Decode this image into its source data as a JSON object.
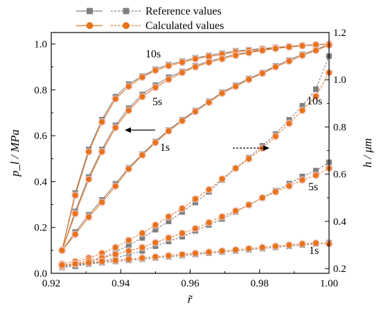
{
  "chart_data": {
    "type": "line",
    "xlabel": "r̃",
    "ylabel_left": "p_l / MPa",
    "ylabel_right": "h / μm",
    "xlim": [
      0.92,
      1.0
    ],
    "ylim_left": [
      0.0,
      1.05
    ],
    "ylim_right": [
      0.18,
      1.2
    ],
    "x_ticks": [
      "0.92",
      "0.94",
      "0.96",
      "0.98",
      "1.00"
    ],
    "y_left_ticks": [
      "0.0",
      "0.2",
      "0.4",
      "0.6",
      "0.8",
      "1.0"
    ],
    "y_right_ticks": [
      "0.2",
      "0.4",
      "0.6",
      "0.8",
      "1.0",
      "1.2"
    ],
    "legend": {
      "reference": "Reference values",
      "calculated": "Calculated values"
    },
    "colors": {
      "reference": "#7f7f7f",
      "calculated": "#e8731c",
      "halo": "#f4c7c0"
    },
    "annotations": {
      "p_10s": "10s",
      "p_5s": "5s",
      "p_1s": "1s",
      "h_10s": "10s",
      "h_5s": "5s",
      "h_1s": "1s"
    },
    "x": [
      0.9231,
      0.9269,
      0.9308,
      0.9346,
      0.9385,
      0.9423,
      0.9462,
      0.95,
      0.9538,
      0.9577,
      0.9615,
      0.9654,
      0.9692,
      0.9731,
      0.9769,
      0.9808,
      0.9846,
      0.9885,
      0.9923,
      0.9962,
      1.0
    ],
    "series": [
      {
        "name": "10s",
        "axis": "left",
        "set": "reference",
        "values": [
          0.1,
          0.35,
          0.54,
          0.67,
          0.77,
          0.825,
          0.86,
          0.89,
          0.91,
          0.925,
          0.94,
          0.95,
          0.96,
          0.97,
          0.975,
          0.98,
          0.985,
          0.99,
          0.994,
          0.997,
          1.0
        ]
      },
      {
        "name": "10s",
        "axis": "left",
        "set": "calculated",
        "values": [
          0.1,
          0.34,
          0.53,
          0.66,
          0.76,
          0.815,
          0.855,
          0.885,
          0.905,
          0.92,
          0.935,
          0.945,
          0.955,
          0.965,
          0.972,
          0.978,
          0.984,
          0.989,
          0.993,
          0.997,
          1.0
        ]
      },
      {
        "name": "5s",
        "axis": "left",
        "set": "reference",
        "values": [
          0.1,
          0.27,
          0.42,
          0.54,
          0.645,
          0.72,
          0.78,
          0.82,
          0.855,
          0.88,
          0.905,
          0.925,
          0.94,
          0.955,
          0.965,
          0.975,
          0.982,
          0.988,
          0.993,
          0.997,
          1.0
        ]
      },
      {
        "name": "5s",
        "axis": "left",
        "set": "calculated",
        "values": [
          0.1,
          0.26,
          0.41,
          0.53,
          0.635,
          0.71,
          0.77,
          0.81,
          0.845,
          0.875,
          0.9,
          0.92,
          0.935,
          0.95,
          0.962,
          0.972,
          0.98,
          0.987,
          0.992,
          0.996,
          1.0
        ]
      },
      {
        "name": "1s",
        "axis": "left",
        "set": "reference",
        "values": [
          0.1,
          0.18,
          0.255,
          0.32,
          0.39,
          0.46,
          0.52,
          0.575,
          0.625,
          0.67,
          0.71,
          0.75,
          0.79,
          0.82,
          0.85,
          0.875,
          0.905,
          0.93,
          0.955,
          0.975,
          1.0
        ]
      },
      {
        "name": "1s",
        "axis": "left",
        "set": "calculated",
        "values": [
          0.1,
          0.17,
          0.245,
          0.31,
          0.38,
          0.455,
          0.515,
          0.57,
          0.62,
          0.665,
          0.705,
          0.745,
          0.785,
          0.815,
          0.845,
          0.872,
          0.9,
          0.925,
          0.95,
          0.972,
          0.995
        ]
      },
      {
        "name": "10s",
        "axis": "right",
        "set": "reference",
        "values": [
          0.21,
          0.215,
          0.225,
          0.245,
          0.27,
          0.3,
          0.33,
          0.365,
          0.4,
          0.44,
          0.48,
          0.525,
          0.575,
          0.625,
          0.67,
          0.72,
          0.77,
          0.83,
          0.89,
          0.96,
          1.1
        ]
      },
      {
        "name": "10s",
        "axis": "right",
        "set": "calculated",
        "values": [
          0.22,
          0.23,
          0.245,
          0.265,
          0.29,
          0.32,
          0.35,
          0.385,
          0.42,
          0.455,
          0.495,
          0.535,
          0.58,
          0.625,
          0.665,
          0.71,
          0.76,
          0.815,
          0.87,
          0.93,
          1.03
        ]
      },
      {
        "name": "5s",
        "axis": "right",
        "set": "reference",
        "values": [
          0.205,
          0.21,
          0.22,
          0.23,
          0.245,
          0.26,
          0.275,
          0.295,
          0.315,
          0.335,
          0.36,
          0.385,
          0.41,
          0.44,
          0.47,
          0.5,
          0.53,
          0.56,
          0.59,
          0.615,
          0.65
        ]
      },
      {
        "name": "5s",
        "axis": "right",
        "set": "calculated",
        "values": [
          0.21,
          0.22,
          0.235,
          0.245,
          0.26,
          0.275,
          0.29,
          0.31,
          0.33,
          0.35,
          0.37,
          0.395,
          0.42,
          0.445,
          0.47,
          0.5,
          0.525,
          0.55,
          0.575,
          0.595,
          0.625
        ]
      },
      {
        "name": "1s",
        "axis": "right",
        "set": "reference",
        "values": [
          0.21,
          0.215,
          0.22,
          0.225,
          0.23,
          0.235,
          0.24,
          0.245,
          0.25,
          0.255,
          0.26,
          0.265,
          0.27,
          0.275,
          0.28,
          0.285,
          0.29,
          0.295,
          0.3,
          0.305,
          0.31
        ]
      },
      {
        "name": "1s",
        "axis": "right",
        "set": "calculated",
        "values": [
          0.215,
          0.22,
          0.225,
          0.23,
          0.235,
          0.24,
          0.245,
          0.25,
          0.255,
          0.26,
          0.265,
          0.27,
          0.275,
          0.28,
          0.285,
          0.29,
          0.295,
          0.3,
          0.305,
          0.308,
          0.305
        ]
      }
    ]
  }
}
